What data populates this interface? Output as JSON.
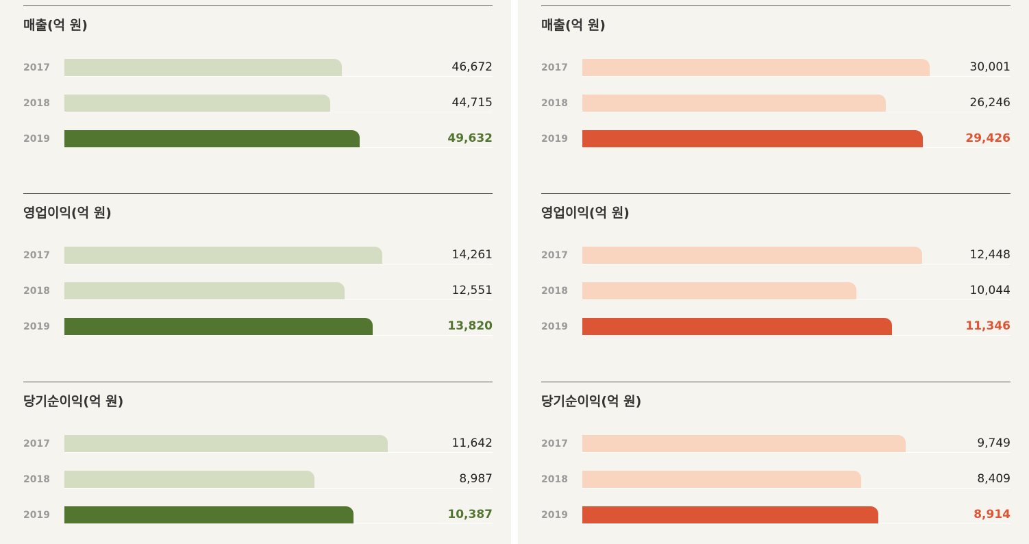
{
  "colors": {
    "left_past": "#d4ddc2",
    "left_current": "#527530",
    "right_past": "#f9d4bf",
    "right_current": "#dc5535"
  },
  "chart_data": [
    {
      "type": "bar",
      "orientation": "horizontal",
      "panel": "left",
      "title": "매출(억 원)",
      "categories": [
        "2017",
        "2018",
        "2019"
      ],
      "values": [
        46672,
        44715,
        49632
      ],
      "value_labels": [
        "46,672",
        "44,715",
        "49,632"
      ],
      "xlim": [
        0,
        72000
      ]
    },
    {
      "type": "bar",
      "orientation": "horizontal",
      "panel": "left",
      "title": "영업이익(억 원)",
      "categories": [
        "2017",
        "2018",
        "2019"
      ],
      "values": [
        14261,
        12551,
        13820
      ],
      "value_labels": [
        "14,261",
        "12,551",
        "13,820"
      ],
      "xlim": [
        0,
        19200
      ]
    },
    {
      "type": "bar",
      "orientation": "horizontal",
      "panel": "left",
      "title": "당기순이익(억 원)",
      "categories": [
        "2017",
        "2018",
        "2019"
      ],
      "values": [
        11642,
        8987,
        10387
      ],
      "value_labels": [
        "11,642",
        "8,987",
        "10,387"
      ],
      "xlim": [
        0,
        15400
      ]
    },
    {
      "type": "bar",
      "orientation": "horizontal",
      "panel": "right",
      "title": "매출(억 원)",
      "categories": [
        "2017",
        "2018",
        "2019"
      ],
      "values": [
        30001,
        26246,
        29426
      ],
      "value_labels": [
        "30,001",
        "26,246",
        "29,426"
      ],
      "xlim": [
        0,
        37000
      ]
    },
    {
      "type": "bar",
      "orientation": "horizontal",
      "panel": "right",
      "title": "영업이익(억 원)",
      "categories": [
        "2017",
        "2018",
        "2019"
      ],
      "values": [
        12448,
        10044,
        11346
      ],
      "value_labels": [
        "12,448",
        "10,044",
        "11,346"
      ],
      "xlim": [
        0,
        15700
      ]
    },
    {
      "type": "bar",
      "orientation": "horizontal",
      "panel": "right",
      "title": "당기순이익(억 원)",
      "categories": [
        "2017",
        "2018",
        "2019"
      ],
      "values": [
        9749,
        8409,
        8914
      ],
      "value_labels": [
        "9,749",
        "8,409",
        "8,914"
      ],
      "xlim": [
        0,
        12900
      ]
    }
  ]
}
